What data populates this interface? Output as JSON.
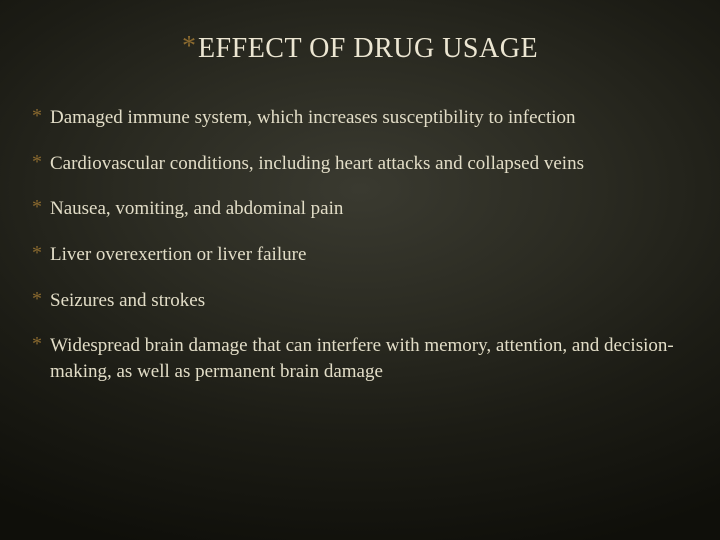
{
  "slide": {
    "title": "EFFECT OF DRUG USAGE",
    "title_fontsize": 28,
    "title_color": "#ece6d2",
    "asterisk_color": "#8b6a2f",
    "body_fontsize": 19,
    "body_color": "#e2ddc7",
    "background": {
      "type": "radial-gradient",
      "center_color": "#3a3a30",
      "mid_color": "#2b2b22",
      "outer_color": "#1c1c15",
      "edge_color": "#0f0f0a"
    },
    "font_family": "Georgia, Times New Roman, serif",
    "bullets": [
      "Damaged immune system, which increases susceptibility to infection",
      "Cardiovascular conditions, including heart attacks and collapsed veins",
      "Nausea, vomiting, and abdominal pain",
      "Liver overexertion or liver failure",
      "Seizures and strokes",
      "Widespread brain damage that can interfere with memory, attention, and decision-making, as well as permanent brain damage"
    ]
  }
}
